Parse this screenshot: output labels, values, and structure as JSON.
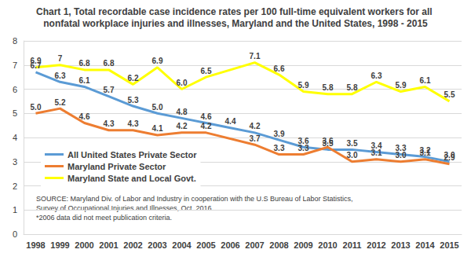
{
  "chart_data": {
    "type": "line",
    "title": "Chart 1, Total recordable case incidence rates per 100 full-time equivalent workers for all nonfatal workplace injuries and illnesses, Maryland and the United States, 1998 - 2015",
    "annotations": [
      "SOURCE: Maryland Div. of Labor and Industry in cooperation with the U.S Bureau of Labor Statistics,",
      "Survey of Occupational Injuries and Illnesses, Oct. 2016",
      "*2006 data did not meet publication criteria."
    ],
    "categories": [
      "1998",
      "1999",
      "2000",
      "2001",
      "2002",
      "2003",
      "2004",
      "2005",
      "2006",
      "2007",
      "2008",
      "2009",
      "2010",
      "2011",
      "2012",
      "2013",
      "2014",
      "2015"
    ],
    "series": [
      {
        "name": "All United States Private Sector",
        "color": "#5b9bd5",
        "values": [
          6.7,
          6.3,
          6.1,
          5.7,
          5.3,
          5.0,
          4.8,
          4.6,
          4.4,
          4.2,
          3.9,
          3.6,
          3.5,
          3.5,
          3.4,
          3.3,
          3.2,
          3.0
        ],
        "value_labels": [
          "6.7",
          "6.3",
          "6.1",
          "5.7",
          "5.3",
          "5.0",
          "4.8",
          "4.6",
          "4.4",
          "4.2",
          "3.9",
          "3.6",
          "3.5",
          "3.5",
          "3.4",
          "3.3",
          "3.2",
          "3.0"
        ]
      },
      {
        "name": "Maryland Private Sector",
        "color": "#ed7d31",
        "values": [
          5.0,
          5.2,
          4.6,
          4.3,
          4.3,
          4.1,
          4.2,
          4.2,
          null,
          3.7,
          3.3,
          3.3,
          3.6,
          3.0,
          3.1,
          3.0,
          3.1,
          2.9
        ],
        "value_labels": [
          "5.0",
          "5.2",
          "4.6",
          "4.3",
          "4.3",
          "4.1",
          "4.2",
          "4.2",
          null,
          "3.7",
          "3.3",
          "3.3",
          "3.6",
          "3.0",
          "3.1",
          "3.0",
          "3.1",
          "2.9"
        ]
      },
      {
        "name": "Maryland State and Local Govt.",
        "color": "#ffff00",
        "values": [
          6.9,
          7,
          6.8,
          6.8,
          6.2,
          6.9,
          6.0,
          6.5,
          null,
          7.1,
          6.6,
          5.9,
          5.8,
          5.8,
          6.3,
          5.9,
          6.1,
          5.5
        ],
        "value_labels": [
          "6.9",
          "7",
          "6.8",
          "6.8",
          "6.2",
          "6.9",
          "6.0",
          "6.5",
          null,
          "7.1",
          "6.6",
          "5.9",
          "5.8",
          "5.8",
          "6.3",
          "5.9",
          "6.1",
          "5.5"
        ]
      }
    ],
    "ylim": [
      0,
      8
    ],
    "yticks": [
      0,
      1,
      2,
      3,
      4,
      5,
      6,
      7,
      8
    ],
    "grid": true,
    "legend": "left",
    "data_labels": true
  }
}
